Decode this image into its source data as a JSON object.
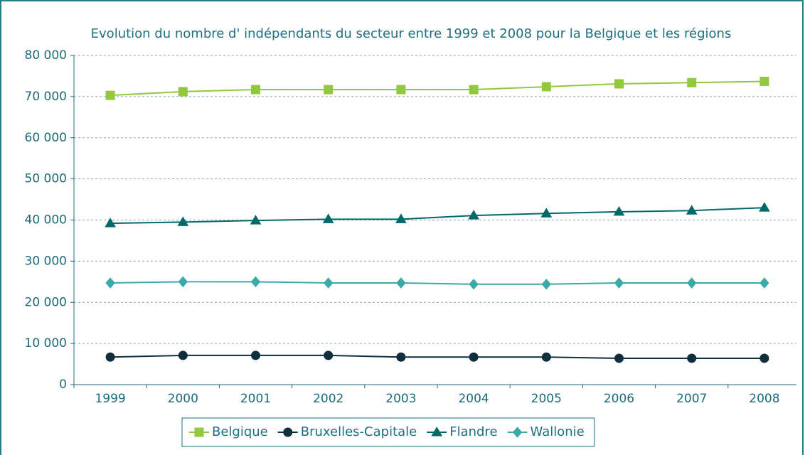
{
  "chart_data": {
    "type": "line",
    "title": "Evolution du nombre d' indépendants du secteur entre 1999 et 2008 pour la Belgique et les régions",
    "categories": [
      "1999",
      "2000",
      "2001",
      "2002",
      "2003",
      "2004",
      "2005",
      "2006",
      "2007",
      "2008"
    ],
    "series": [
      {
        "name": "Belgique",
        "color": "#92c83e",
        "marker": "square",
        "values": [
          70300,
          71200,
          71700,
          71700,
          71700,
          71700,
          72400,
          73100,
          73400,
          73700
        ]
      },
      {
        "name": "Bruxelles-Capitale",
        "color": "#0f2f3c",
        "marker": "circle",
        "values": [
          6700,
          7100,
          7100,
          7100,
          6700,
          6700,
          6700,
          6400,
          6400,
          6400
        ]
      },
      {
        "name": "Flandre",
        "color": "#006a6a",
        "marker": "triangle",
        "values": [
          39200,
          39500,
          39900,
          40200,
          40200,
          41100,
          41600,
          42000,
          42300,
          43000
        ]
      },
      {
        "name": "Wallonie",
        "color": "#3aaaa8",
        "marker": "diamond",
        "values": [
          24700,
          25000,
          25000,
          24700,
          24700,
          24400,
          24400,
          24700,
          24700,
          24700
        ]
      }
    ],
    "ylim": [
      0,
      80000
    ],
    "yticks": [
      0,
      {
        "value": 10000,
        "label": "10 000"
      },
      {
        "value": 20000,
        "label": "20 000"
      },
      {
        "value": 30000,
        "label": "30 000"
      },
      {
        "value": 40000,
        "label": "40 000"
      },
      {
        "value": 50000,
        "label": "50 000"
      },
      {
        "value": 60000,
        "label": "60 000"
      },
      {
        "value": 70000,
        "label": "70 000"
      },
      {
        "value": 80000,
        "label": "80 000"
      }
    ],
    "grid": true,
    "legend": "bottom"
  }
}
